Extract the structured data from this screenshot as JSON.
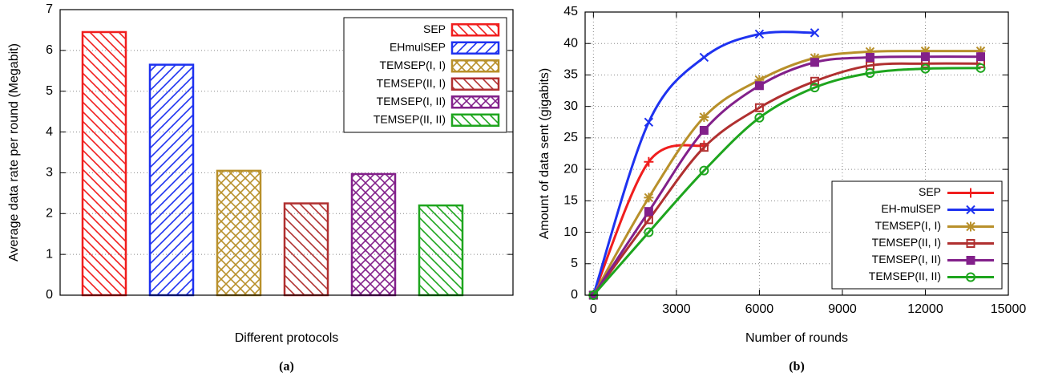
{
  "chart_data": [
    {
      "type": "bar",
      "xlabel": "Different protocols",
      "ylabel": "Average data rate per round (Megabit)",
      "caption": "(a)",
      "ylim": [
        0,
        7
      ],
      "yticks": [
        0,
        1,
        2,
        3,
        4,
        5,
        6,
        7
      ],
      "grid": true,
      "legend": "upper right",
      "series": [
        {
          "name": "SEP",
          "color": "#f01e1e",
          "hatch": "backslash",
          "values": [
            6.45
          ]
        },
        {
          "name": "EHmulSEP",
          "color": "#1e32f0",
          "hatch": "slash",
          "values": [
            5.65
          ]
        },
        {
          "name": "TEMSEP(I, I)",
          "color": "#b8902a",
          "hatch": "cross",
          "values": [
            3.05
          ]
        },
        {
          "name": "TEMSEP(II, I)",
          "color": "#b03030",
          "hatch": "backslash",
          "values": [
            2.25
          ]
        },
        {
          "name": "TEMSEP(I, II)",
          "color": "#82208a",
          "hatch": "cross",
          "values": [
            2.97
          ]
        },
        {
          "name": "TEMSEP(II, II)",
          "color": "#1ea51e",
          "hatch": "backslash",
          "values": [
            2.2
          ]
        }
      ]
    },
    {
      "type": "line",
      "xlabel": "Number of rounds",
      "ylabel": "Amount of data sent (gigabits)",
      "caption": "(b)",
      "x": [
        0,
        2000,
        4000,
        6000,
        8000,
        10000,
        12000,
        14000
      ],
      "xlim": [
        -300,
        15000
      ],
      "xticks": [
        0,
        3000,
        6000,
        9000,
        12000,
        15000
      ],
      "ylim": [
        0,
        45
      ],
      "yticks": [
        0,
        5,
        10,
        15,
        20,
        25,
        30,
        35,
        40,
        45
      ],
      "grid": true,
      "legend": "lower right",
      "series": [
        {
          "name": "SEP",
          "color": "#f01e1e",
          "marker": "plus",
          "values": [
            0,
            21.2,
            23.8,
            null,
            null,
            null,
            null,
            null
          ]
        },
        {
          "name": "EH-mulSEP",
          "color": "#1e32f0",
          "marker": "x",
          "values": [
            0,
            27.5,
            37.8,
            41.5,
            41.7,
            null,
            null,
            null
          ]
        },
        {
          "name": "TEMSEP(I, I)",
          "color": "#b8902a",
          "marker": "star",
          "values": [
            0,
            15.5,
            28.3,
            34.2,
            37.7,
            38.7,
            38.8,
            38.8
          ]
        },
        {
          "name": "TEMSEP(II, I)",
          "color": "#b03030",
          "marker": "square-open",
          "values": [
            0,
            12,
            23.5,
            29.8,
            34,
            36.5,
            36.8,
            36.8
          ]
        },
        {
          "name": "TEMSEP(I, II)",
          "color": "#82208a",
          "marker": "square",
          "values": [
            0,
            13.3,
            26.2,
            33.3,
            37,
            37.8,
            37.9,
            37.9
          ]
        },
        {
          "name": "TEMSEP(II, II)",
          "color": "#1ea51e",
          "marker": "circle-open",
          "values": [
            0,
            10,
            19.8,
            28.2,
            33,
            35.3,
            36,
            36.1
          ]
        }
      ]
    }
  ]
}
